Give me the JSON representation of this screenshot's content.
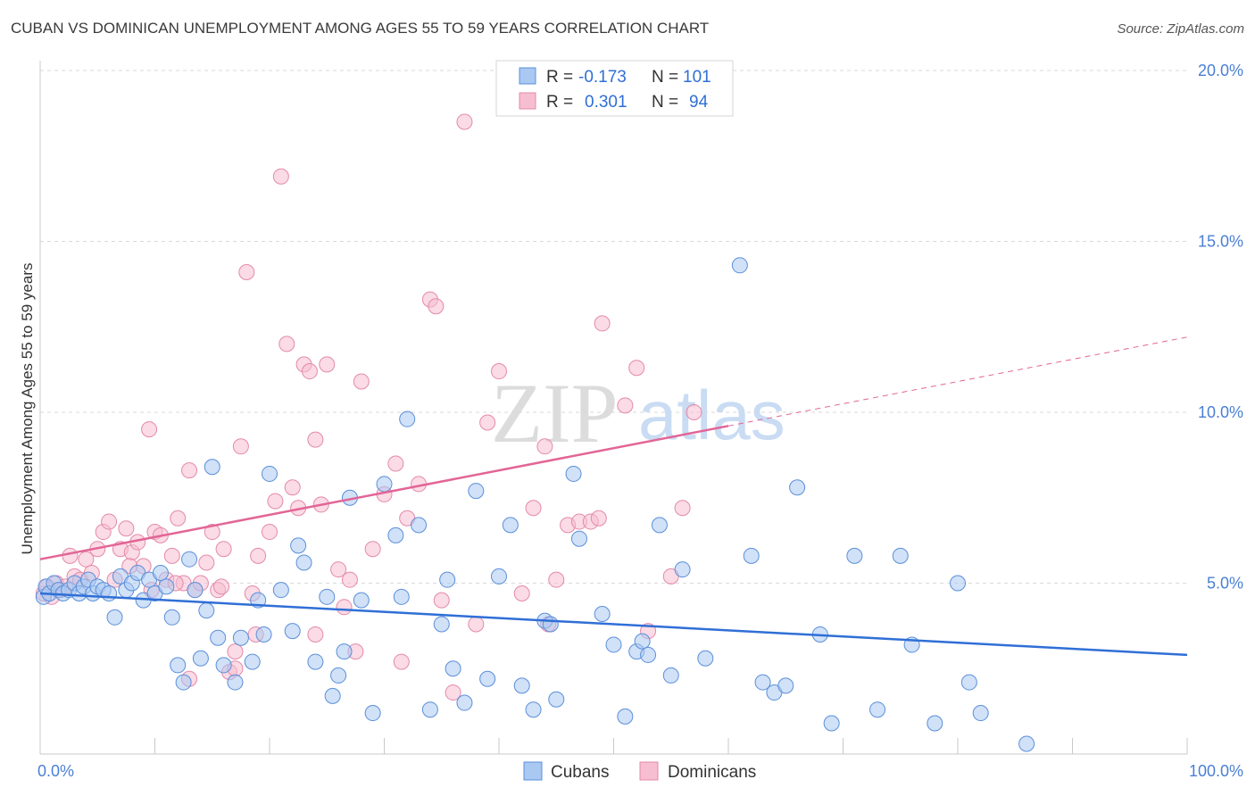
{
  "title": "CUBAN VS DOMINICAN UNEMPLOYMENT AMONG AGES 55 TO 59 YEARS CORRELATION CHART",
  "source": "Source: ZipAtlas.com",
  "watermark": {
    "zip": "ZIP",
    "atlas": "atlas"
  },
  "legend": {
    "r_label": "R =",
    "n_label": "N =",
    "cubans": {
      "r": "-0.173",
      "n": "101"
    },
    "dominicans": {
      "r": "0.301",
      "n": "94"
    }
  },
  "bottom_legend": {
    "cubans": "Cubans",
    "dominicans": "Dominicans"
  },
  "colors": {
    "cubans_fill": "#a9c8f2",
    "cubans_stroke": "#5b8fd9",
    "cubans_line": "#2f6fd6",
    "dominicans_fill": "#f7bdd0",
    "dominicans_stroke": "#e38aab",
    "dominicans_line": "#e26596",
    "tick": "#4a7fd4",
    "grid": "#d9d9d9"
  },
  "chart_data": {
    "type": "scatter",
    "xlabel": "",
    "ylabel": "Unemployment Among Ages 55 to 59 years",
    "xlim": [
      0,
      100
    ],
    "ylim": [
      0,
      20
    ],
    "x_tick_labels": [
      "0.0%",
      "100.0%"
    ],
    "y_tick_labels": [
      "5.0%",
      "10.0%",
      "15.0%",
      "20.0%"
    ],
    "y_ticks": [
      5,
      10,
      15,
      20
    ],
    "grid": true,
    "series": [
      {
        "name": "Cubans",
        "trend": {
          "x": [
            0,
            100
          ],
          "y": [
            4.7,
            2.9
          ]
        },
        "points": [
          [
            0.3,
            4.6
          ],
          [
            0.5,
            4.9
          ],
          [
            0.8,
            4.7
          ],
          [
            1.2,
            5.0
          ],
          [
            1.6,
            4.8
          ],
          [
            2.0,
            4.7
          ],
          [
            2.5,
            4.8
          ],
          [
            3.0,
            5.0
          ],
          [
            3.4,
            4.7
          ],
          [
            3.8,
            4.9
          ],
          [
            4.2,
            5.1
          ],
          [
            4.6,
            4.7
          ],
          [
            5.0,
            4.9
          ],
          [
            5.5,
            4.8
          ],
          [
            6.0,
            4.7
          ],
          [
            6.5,
            4.0
          ],
          [
            7.0,
            5.2
          ],
          [
            7.5,
            4.8
          ],
          [
            8.0,
            5.0
          ],
          [
            8.5,
            5.3
          ],
          [
            9.0,
            4.5
          ],
          [
            9.5,
            5.1
          ],
          [
            10.0,
            4.7
          ],
          [
            10.5,
            5.3
          ],
          [
            11.0,
            4.9
          ],
          [
            11.5,
            4.0
          ],
          [
            12.0,
            2.6
          ],
          [
            12.5,
            2.1
          ],
          [
            13.0,
            5.7
          ],
          [
            13.5,
            4.8
          ],
          [
            14.0,
            2.8
          ],
          [
            14.5,
            4.2
          ],
          [
            15.0,
            8.4
          ],
          [
            15.5,
            3.4
          ],
          [
            16.0,
            2.6
          ],
          [
            17.0,
            2.1
          ],
          [
            17.5,
            3.4
          ],
          [
            18.5,
            2.7
          ],
          [
            19.0,
            4.5
          ],
          [
            19.5,
            3.5
          ],
          [
            20.0,
            8.2
          ],
          [
            21.0,
            4.8
          ],
          [
            22.0,
            3.6
          ],
          [
            22.5,
            6.1
          ],
          [
            23.0,
            5.6
          ],
          [
            24.0,
            2.7
          ],
          [
            25.0,
            4.6
          ],
          [
            25.5,
            1.7
          ],
          [
            26.0,
            2.3
          ],
          [
            26.5,
            3.0
          ],
          [
            27.0,
            7.5
          ],
          [
            28.0,
            4.5
          ],
          [
            29.0,
            1.2
          ],
          [
            30.0,
            7.9
          ],
          [
            31.0,
            6.4
          ],
          [
            31.5,
            4.6
          ],
          [
            32.0,
            9.8
          ],
          [
            33.0,
            6.7
          ],
          [
            34.0,
            1.3
          ],
          [
            35.0,
            3.8
          ],
          [
            35.5,
            5.1
          ],
          [
            36.0,
            2.5
          ],
          [
            37.0,
            1.5
          ],
          [
            38.0,
            7.7
          ],
          [
            39.0,
            2.2
          ],
          [
            40.0,
            5.2
          ],
          [
            41.0,
            6.7
          ],
          [
            42.0,
            2.0
          ],
          [
            43.0,
            1.3
          ],
          [
            44.0,
            3.9
          ],
          [
            44.5,
            3.8
          ],
          [
            45.0,
            1.6
          ],
          [
            46.5,
            8.2
          ],
          [
            47.0,
            6.3
          ],
          [
            49.0,
            4.1
          ],
          [
            50.0,
            3.2
          ],
          [
            51.0,
            1.1
          ],
          [
            52.0,
            3.0
          ],
          [
            52.5,
            3.3
          ],
          [
            53.0,
            2.9
          ],
          [
            54.0,
            6.7
          ],
          [
            55.0,
            2.3
          ],
          [
            56.0,
            5.4
          ],
          [
            58.0,
            2.8
          ],
          [
            61.0,
            14.3
          ],
          [
            62.0,
            5.8
          ],
          [
            63.0,
            2.1
          ],
          [
            64.0,
            1.8
          ],
          [
            65.0,
            2.0
          ],
          [
            66.0,
            7.8
          ],
          [
            68.0,
            3.5
          ],
          [
            69.0,
            0.9
          ],
          [
            71.0,
            5.8
          ],
          [
            73.0,
            1.3
          ],
          [
            75.0,
            5.8
          ],
          [
            76.0,
            3.2
          ],
          [
            78.0,
            0.9
          ],
          [
            80.0,
            5.0
          ],
          [
            81.0,
            2.1
          ],
          [
            82.0,
            1.2
          ],
          [
            86.0,
            0.3
          ]
        ]
      },
      {
        "name": "Dominicans",
        "trend": {
          "x": [
            0,
            60
          ],
          "y": [
            5.7,
            9.6
          ]
        },
        "trend_extension": {
          "x": [
            60,
            100
          ],
          "y": [
            9.6,
            12.2
          ]
        },
        "points": [
          [
            0.3,
            4.7
          ],
          [
            0.6,
            4.9
          ],
          [
            1.0,
            4.6
          ],
          [
            1.4,
            5.0
          ],
          [
            1.8,
            4.8
          ],
          [
            2.2,
            4.9
          ],
          [
            2.6,
            5.8
          ],
          [
            3.0,
            5.2
          ],
          [
            3.5,
            5.1
          ],
          [
            4.0,
            5.7
          ],
          [
            4.5,
            5.3
          ],
          [
            5.0,
            6.0
          ],
          [
            5.5,
            6.5
          ],
          [
            6.0,
            6.8
          ],
          [
            6.5,
            5.1
          ],
          [
            7.0,
            6.0
          ],
          [
            7.5,
            6.6
          ],
          [
            8.0,
            5.9
          ],
          [
            8.5,
            6.2
          ],
          [
            9.0,
            5.5
          ],
          [
            9.5,
            9.5
          ],
          [
            10.0,
            6.5
          ],
          [
            10.5,
            6.4
          ],
          [
            11.0,
            5.1
          ],
          [
            11.5,
            5.8
          ],
          [
            12.0,
            6.9
          ],
          [
            12.5,
            5.0
          ],
          [
            13.0,
            8.3
          ],
          [
            13.5,
            4.8
          ],
          [
            14.0,
            5.0
          ],
          [
            14.5,
            5.6
          ],
          [
            15.0,
            6.5
          ],
          [
            15.5,
            4.8
          ],
          [
            16.0,
            6.0
          ],
          [
            16.5,
            2.4
          ],
          [
            17.0,
            3.0
          ],
          [
            17.5,
            9.0
          ],
          [
            18.0,
            14.1
          ],
          [
            18.5,
            4.7
          ],
          [
            19.0,
            5.8
          ],
          [
            20.0,
            6.5
          ],
          [
            20.5,
            7.4
          ],
          [
            21.0,
            16.9
          ],
          [
            21.5,
            12.0
          ],
          [
            22.0,
            7.8
          ],
          [
            22.5,
            7.2
          ],
          [
            23.0,
            11.4
          ],
          [
            23.5,
            11.2
          ],
          [
            24.0,
            9.2
          ],
          [
            24.5,
            7.3
          ],
          [
            25.0,
            11.4
          ],
          [
            26.0,
            5.4
          ],
          [
            27.0,
            5.1
          ],
          [
            28.0,
            10.9
          ],
          [
            29.0,
            6.0
          ],
          [
            30.0,
            7.6
          ],
          [
            31.0,
            8.5
          ],
          [
            32.0,
            6.9
          ],
          [
            33.0,
            7.9
          ],
          [
            34.0,
            13.3
          ],
          [
            34.5,
            13.1
          ],
          [
            35.0,
            4.5
          ],
          [
            36.0,
            1.8
          ],
          [
            37.0,
            18.5
          ],
          [
            38.0,
            3.8
          ],
          [
            39.0,
            9.7
          ],
          [
            40.0,
            11.2
          ],
          [
            42.0,
            4.7
          ],
          [
            43.0,
            7.2
          ],
          [
            44.0,
            9.0
          ],
          [
            45.0,
            5.1
          ],
          [
            46.0,
            6.7
          ],
          [
            47.0,
            6.8
          ],
          [
            48.0,
            6.8
          ],
          [
            49.0,
            12.6
          ],
          [
            51.0,
            10.2
          ],
          [
            52.0,
            11.3
          ],
          [
            53.0,
            3.6
          ],
          [
            55.0,
            5.2
          ],
          [
            56.0,
            7.2
          ],
          [
            57.0,
            10.0
          ],
          [
            24.0,
            3.5
          ],
          [
            27.5,
            3.0
          ],
          [
            31.5,
            2.7
          ],
          [
            17.0,
            2.5
          ],
          [
            13.0,
            2.2
          ],
          [
            18.8,
            3.5
          ],
          [
            26.5,
            4.3
          ],
          [
            44.3,
            3.8
          ],
          [
            48.7,
            6.9
          ],
          [
            11.8,
            5.0
          ],
          [
            15.8,
            4.9
          ],
          [
            7.8,
            5.5
          ],
          [
            9.7,
            4.8
          ]
        ]
      }
    ]
  }
}
